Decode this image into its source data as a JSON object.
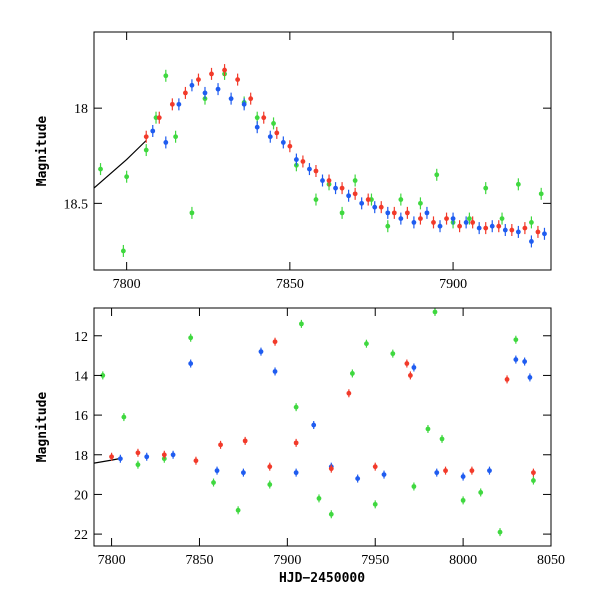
{
  "colors": {
    "series_green": "#3fd83f",
    "series_blue": "#1f5cf0",
    "series_red": "#f23a2a",
    "model_curve": "#000000"
  },
  "chart_data": [
    {
      "type": "scatter",
      "panel": "top",
      "xlabel": "",
      "ylabel": "Magnitude",
      "xlim": [
        7790,
        7930
      ],
      "ylim": [
        18.85,
        17.6
      ],
      "y_inverted": true,
      "x_ticks": [
        7800,
        7850,
        7900
      ],
      "y_ticks": [
        18,
        18.5
      ],
      "grid": false,
      "model_curve": {
        "x": [
          7790,
          7800,
          7806
        ],
        "y": [
          18.42,
          18.27,
          18.17
        ]
      },
      "series": [
        {
          "color_key": "series_green",
          "x": [
            7792,
            7799,
            7800,
            7806,
            7809,
            7812,
            7815,
            7820,
            7824,
            7830,
            7836,
            7840,
            7845,
            7852,
            7858,
            7862,
            7866,
            7870,
            7875,
            7880,
            7884,
            7890,
            7895,
            7900,
            7905,
            7910,
            7915,
            7920,
            7924,
            7927
          ],
          "y": [
            18.32,
            18.75,
            18.36,
            18.22,
            18.05,
            17.83,
            18.15,
            18.55,
            17.95,
            17.82,
            17.97,
            18.05,
            18.08,
            18.3,
            18.48,
            18.4,
            18.55,
            18.38,
            18.48,
            18.62,
            18.48,
            18.5,
            18.35,
            18.6,
            18.58,
            18.42,
            18.58,
            18.4,
            18.6,
            18.45
          ]
        },
        {
          "color_key": "series_blue",
          "x": [
            7808,
            7812,
            7816,
            7820,
            7824,
            7828,
            7832,
            7836,
            7840,
            7844,
            7848,
            7852,
            7856,
            7860,
            7864,
            7868,
            7872,
            7876,
            7880,
            7884,
            7888,
            7892,
            7896,
            7900,
            7904,
            7908,
            7912,
            7916,
            7920,
            7924,
            7928
          ],
          "y": [
            18.12,
            18.18,
            17.98,
            17.88,
            17.92,
            17.9,
            17.95,
            17.98,
            18.1,
            18.15,
            18.18,
            18.27,
            18.32,
            18.38,
            18.42,
            18.46,
            18.5,
            18.52,
            18.55,
            18.58,
            18.6,
            18.55,
            18.62,
            18.58,
            18.6,
            18.63,
            18.62,
            18.64,
            18.65,
            18.7,
            18.66
          ]
        },
        {
          "color_key": "series_red",
          "x": [
            7806,
            7810,
            7814,
            7818,
            7822,
            7826,
            7830,
            7834,
            7838,
            7842,
            7846,
            7850,
            7854,
            7858,
            7862,
            7866,
            7870,
            7874,
            7878,
            7882,
            7886,
            7890,
            7894,
            7898,
            7902,
            7906,
            7910,
            7914,
            7918,
            7922,
            7926
          ],
          "y": [
            18.15,
            18.05,
            17.98,
            17.92,
            17.85,
            17.82,
            17.8,
            17.85,
            17.95,
            18.05,
            18.13,
            18.2,
            18.28,
            18.33,
            18.38,
            18.42,
            18.45,
            18.48,
            18.52,
            18.55,
            18.55,
            18.58,
            18.6,
            18.58,
            18.62,
            18.6,
            18.63,
            18.62,
            18.64,
            18.63,
            18.65
          ]
        }
      ]
    },
    {
      "type": "scatter",
      "panel": "bottom",
      "xlabel": "HJD−2450000",
      "ylabel": "Magnitude",
      "xlim": [
        7790,
        8050
      ],
      "ylim": [
        22.6,
        10.6
      ],
      "y_inverted": true,
      "x_ticks": [
        7800,
        7850,
        7900,
        7950,
        8000,
        8050
      ],
      "y_ticks": [
        12,
        14,
        16,
        18,
        20,
        22
      ],
      "grid": false,
      "model_curve": {
        "x": [
          7790,
          7800,
          7806
        ],
        "y": [
          18.42,
          18.27,
          18.17
        ]
      },
      "series": [
        {
          "color_key": "series_green",
          "x": [
            7795,
            7807,
            7815,
            7830,
            7845,
            7858,
            7872,
            7890,
            7905,
            7908,
            7918,
            7925,
            7937,
            7945,
            7950,
            7960,
            7972,
            7980,
            7984,
            7988,
            8000,
            8010,
            8021,
            8030,
            8040
          ],
          "y": [
            14.0,
            16.1,
            18.5,
            18.2,
            12.1,
            19.4,
            20.8,
            19.5,
            15.6,
            11.4,
            20.2,
            21.0,
            13.9,
            12.4,
            20.5,
            12.9,
            19.6,
            16.7,
            10.8,
            17.2,
            20.3,
            19.9,
            21.9,
            12.2,
            19.3
          ]
        },
        {
          "color_key": "series_blue",
          "x": [
            7805,
            7820,
            7835,
            7845,
            7860,
            7875,
            7885,
            7893,
            7905,
            7915,
            7925,
            7940,
            7955,
            7972,
            7985,
            8000,
            8015,
            8030,
            8035,
            8038
          ],
          "y": [
            18.2,
            18.1,
            18.0,
            13.4,
            18.8,
            18.9,
            12.8,
            13.8,
            18.9,
            16.5,
            18.6,
            19.2,
            19.0,
            13.6,
            18.9,
            19.1,
            18.8,
            13.2,
            13.3,
            14.1
          ]
        },
        {
          "color_key": "series_red",
          "x": [
            7800,
            7815,
            7830,
            7848,
            7862,
            7876,
            7890,
            7893,
            7905,
            7925,
            7935,
            7950,
            7968,
            7970,
            7990,
            8005,
            8025,
            8040
          ],
          "y": [
            18.1,
            17.9,
            18.0,
            18.3,
            17.5,
            17.3,
            18.6,
            12.3,
            17.4,
            18.7,
            14.9,
            18.6,
            13.4,
            14.0,
            18.8,
            18.8,
            14.2,
            18.9
          ]
        }
      ]
    }
  ]
}
